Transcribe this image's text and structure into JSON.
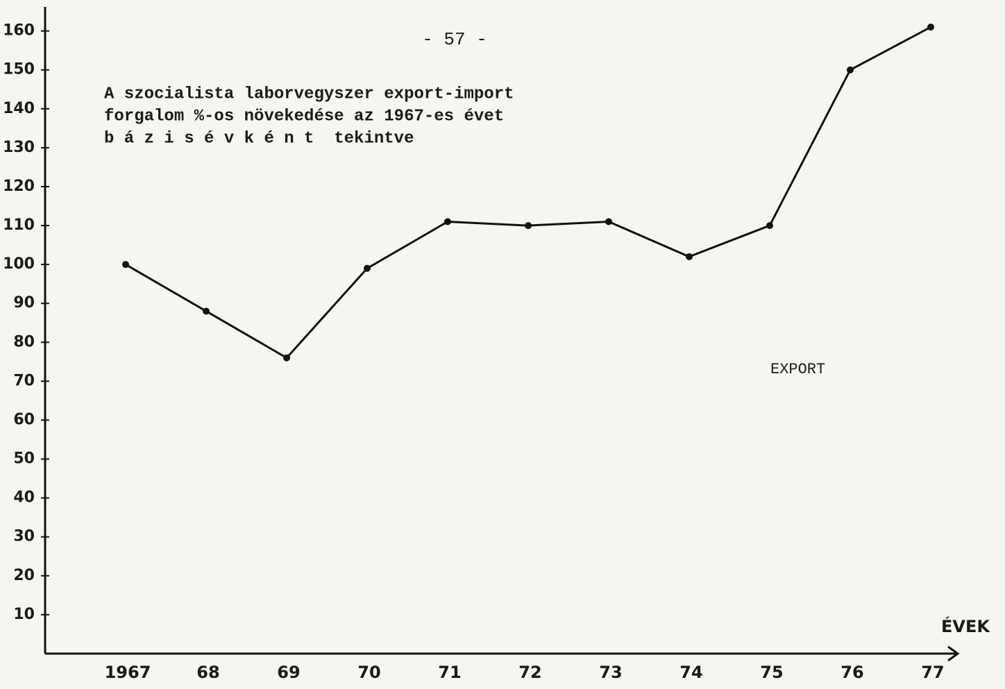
{
  "chart_data": {
    "type": "line",
    "page_number": "- 57 -",
    "title": [
      "A szocialista laborvegyszer export-import",
      "forgalom %-os növekedése az 1967-es évet",
      "b á z i s é v k é n t  tekintve"
    ],
    "annotation": "EXPORT",
    "x_label": "ÉVEK",
    "categories": [
      "1967",
      "68",
      "69",
      "70",
      "71",
      "72",
      "73",
      "74",
      "75",
      "76",
      "77"
    ],
    "values": [
      100,
      88,
      76,
      99,
      111,
      110,
      111,
      102,
      110,
      150,
      161
    ],
    "color": "#111111",
    "ylim": [
      0,
      166
    ],
    "yticks": [
      10,
      20,
      30,
      40,
      50,
      60,
      70,
      80,
      90,
      100,
      110,
      120,
      130,
      140,
      150,
      160
    ]
  }
}
